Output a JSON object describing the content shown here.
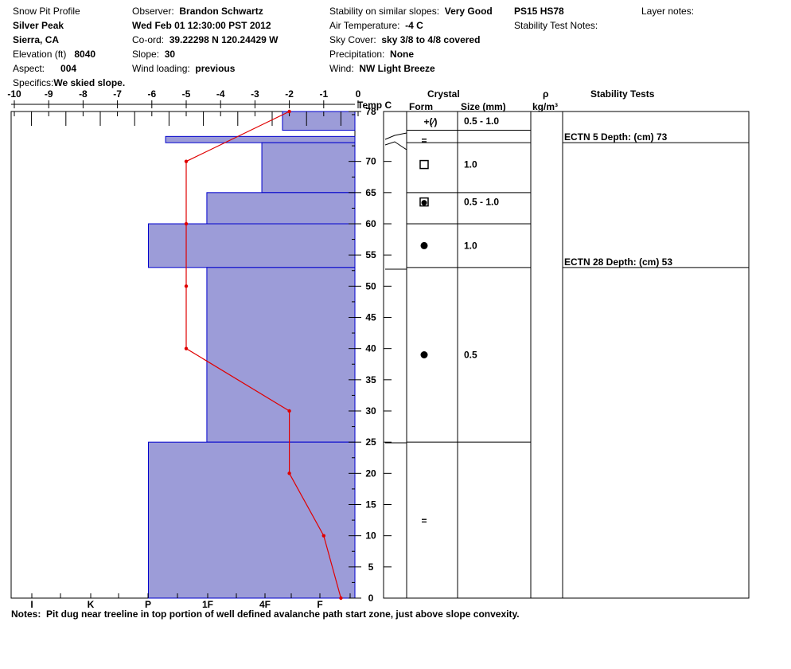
{
  "header": {
    "title": "Snow Pit Profile",
    "location_name": "Silver Peak",
    "region": "Sierra, CA",
    "elevation_label": "Elevation (ft)",
    "elevation_value": "8040",
    "aspect_label": "Aspect:",
    "aspect_value": "004",
    "specifics_label": "Specifics:",
    "specifics_value": "We skied slope.",
    "observer_label": "Observer:",
    "observer_value": "Brandon Schwartz",
    "date": "Wed Feb 01 12:30:00 PST 2012",
    "coord_label": "Co-ord:",
    "coord_value": "39.22298 N 120.24429 W",
    "slope_label": "Slope:",
    "slope_value": "30",
    "wind_loading_label": "Wind loading:",
    "wind_loading_value": "previous",
    "stability_label": "Stability on similar slopes:",
    "stability_value": "Very Good",
    "air_temp_label": "Air Temperature:",
    "air_temp_value": "-4 C",
    "sky_label": "Sky Cover:",
    "sky_value": "sky 3/8 to 4/8 covered",
    "precip_label": "Precipitation:",
    "precip_value": "None",
    "wind_label": "Wind:",
    "wind_value": "NW Light Breeze",
    "ps_hs": "PS15 HS78",
    "stability_test_notes_label": "Stability Test Notes:",
    "layer_notes_label": "Layer notes:"
  },
  "notes_label": "Notes:",
  "notes_value": "Pit dug near treeline in top portion of well defined avalanche path start zone, just above slope convexity.",
  "colors": {
    "hardness_fill": "#9c9cd8",
    "hardness_stroke": "#0000cc",
    "temp_line": "#e00000"
  },
  "columns": {
    "temp_label": "Temp C",
    "crystal_label": "Crystal",
    "form_label": "Form",
    "size_label": "Size (mm)",
    "rho_label": "ρ",
    "density_unit": "kg/m³",
    "stability_tests_label": "Stability Tests"
  },
  "chart_data": {
    "type": "snow-profile",
    "temp_axis": {
      "label": "Temp C",
      "ticks": [
        -10,
        -9,
        -8,
        -7,
        -6,
        -5,
        -4,
        -3,
        -2,
        -1,
        0
      ],
      "range": [
        -10,
        0
      ]
    },
    "height_axis": {
      "ticks": [
        0,
        5,
        10,
        15,
        20,
        25,
        30,
        35,
        40,
        45,
        50,
        55,
        60,
        65,
        70,
        78
      ],
      "range": [
        0,
        78
      ],
      "unit": "cm"
    },
    "hardness_axis": {
      "labels": [
        "I",
        "K",
        "P",
        "1F",
        "4F",
        "F"
      ]
    },
    "hardness_layers": [
      {
        "bottom": 75,
        "top": 78,
        "temp_equiv": -2.2
      },
      {
        "bottom": 73,
        "top": 74,
        "temp_equiv": -5.6
      },
      {
        "bottom": 65,
        "top": 73,
        "temp_equiv": -2.8
      },
      {
        "bottom": 60,
        "top": 65,
        "temp_equiv": -4.4
      },
      {
        "bottom": 53,
        "top": 60,
        "temp_equiv": -6.1
      },
      {
        "bottom": 25,
        "top": 53,
        "temp_equiv": -4.4
      },
      {
        "bottom": 0,
        "top": 25,
        "temp_equiv": -6.1
      }
    ],
    "temperature_profile": [
      {
        "height": 78,
        "temp": -2.0
      },
      {
        "height": 70,
        "temp": -5.0
      },
      {
        "height": 60,
        "temp": -5.0
      },
      {
        "height": 50,
        "temp": -5.0
      },
      {
        "height": 40,
        "temp": -5.0
      },
      {
        "height": 30,
        "temp": -2.0
      },
      {
        "height": 20,
        "temp": -2.0
      },
      {
        "height": 10,
        "temp": -1.0
      },
      {
        "height": 0,
        "temp": -0.5
      }
    ],
    "layer_boundaries": [
      75,
      73,
      65,
      60,
      53,
      25,
      0
    ],
    "crystal_rows": [
      {
        "center": 76.5,
        "form": "precip-frag",
        "size": "0.5 - 1.0"
      },
      {
        "center": 73.5,
        "form": "melt-freeze",
        "size": ""
      },
      {
        "center": 69.5,
        "form": "faceted",
        "size": "1.0"
      },
      {
        "center": 63.5,
        "form": "rounding-faceted",
        "size": "0.5 - 1.0"
      },
      {
        "center": 56.5,
        "form": "rounded",
        "size": "1.0"
      },
      {
        "center": 39,
        "form": "rounded",
        "size": "0.5"
      },
      {
        "center": 12.5,
        "form": "melt-freeze",
        "size": ""
      }
    ],
    "stability_tests": [
      {
        "depth": 73,
        "text": "ECTN 5   Depth: (cm) 73"
      },
      {
        "depth": 53,
        "text": "ECTN 28   Depth: (cm) 53"
      }
    ]
  }
}
